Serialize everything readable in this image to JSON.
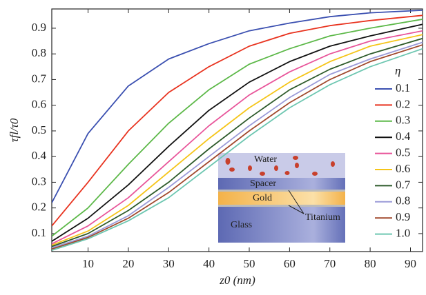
{
  "chart_data": {
    "type": "line",
    "xlabel": "z0 (nm)",
    "ylabel": "τfl/τ0",
    "x": [
      1,
      10,
      20,
      30,
      40,
      50,
      60,
      70,
      80,
      93
    ],
    "xlim": [
      1,
      93
    ],
    "ylim": [
      0.03,
      0.975
    ],
    "xticks": [
      10,
      20,
      30,
      40,
      50,
      60,
      70,
      80,
      90
    ],
    "yticks": [
      0.1,
      0.2,
      0.3,
      0.4,
      0.5,
      0.6,
      0.7,
      0.8,
      0.9
    ],
    "legend_title": "η",
    "legend_position": "right",
    "series": [
      {
        "name": "0.1",
        "color": "#3a4fb0",
        "values": [
          0.22,
          0.49,
          0.675,
          0.78,
          0.84,
          0.89,
          0.92,
          0.945,
          0.96,
          0.97
        ]
      },
      {
        "name": "0.2",
        "color": "#e8321e",
        "values": [
          0.13,
          0.3,
          0.5,
          0.65,
          0.75,
          0.83,
          0.88,
          0.91,
          0.93,
          0.95
        ]
      },
      {
        "name": "0.3",
        "color": "#5cb848",
        "values": [
          0.09,
          0.2,
          0.37,
          0.53,
          0.66,
          0.76,
          0.82,
          0.87,
          0.9,
          0.935
        ]
      },
      {
        "name": "0.4",
        "color": "#111111",
        "values": [
          0.07,
          0.16,
          0.29,
          0.44,
          0.58,
          0.69,
          0.77,
          0.83,
          0.87,
          0.915
        ]
      },
      {
        "name": "0.5",
        "color": "#e8559a",
        "values": [
          0.06,
          0.13,
          0.24,
          0.38,
          0.52,
          0.64,
          0.73,
          0.8,
          0.85,
          0.89
        ]
      },
      {
        "name": "0.6",
        "color": "#f5c518",
        "values": [
          0.055,
          0.11,
          0.21,
          0.34,
          0.47,
          0.59,
          0.69,
          0.77,
          0.83,
          0.875
        ]
      },
      {
        "name": "0.7",
        "color": "#2d5a2a",
        "values": [
          0.05,
          0.1,
          0.19,
          0.3,
          0.43,
          0.55,
          0.66,
          0.74,
          0.8,
          0.86
        ]
      },
      {
        "name": "0.8",
        "color": "#9a9ad8",
        "values": [
          0.045,
          0.09,
          0.17,
          0.28,
          0.4,
          0.52,
          0.63,
          0.72,
          0.78,
          0.845
        ]
      },
      {
        "name": "0.9",
        "color": "#a0482c",
        "values": [
          0.04,
          0.085,
          0.16,
          0.26,
          0.38,
          0.5,
          0.61,
          0.7,
          0.77,
          0.835
        ]
      },
      {
        "name": "1.0",
        "color": "#6cc6b0",
        "values": [
          0.035,
          0.08,
          0.15,
          0.24,
          0.36,
          0.48,
          0.59,
          0.68,
          0.75,
          0.82
        ]
      }
    ],
    "inset_labels": {
      "water": "Water",
      "spacer": "Spacer",
      "gold": "Gold",
      "titanium": "Titanium",
      "glass": "Glass"
    }
  }
}
